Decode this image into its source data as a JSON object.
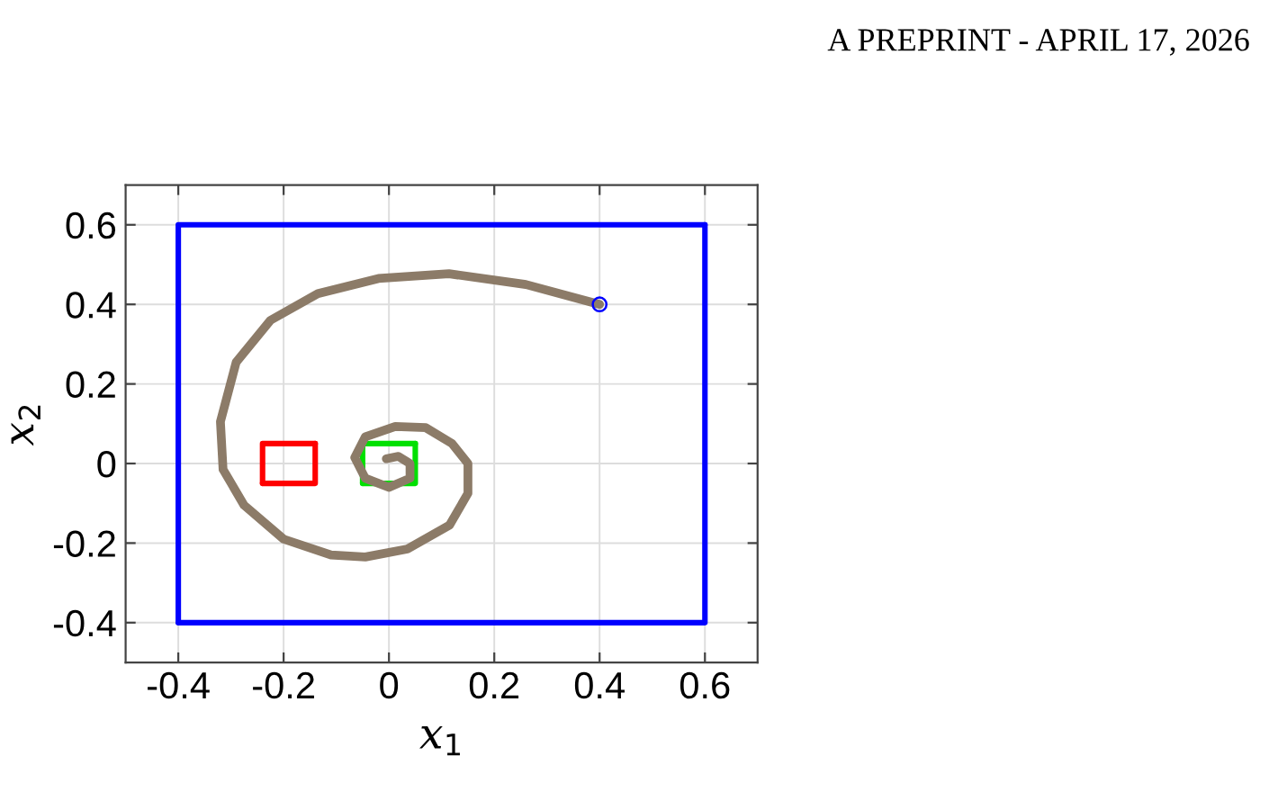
{
  "chart_data": {
    "type": "line",
    "xlabel": "x$_{1}$",
    "ylabel": "x$_{2}$",
    "annotations": [
      "A PREPRINT - APRIL 17, 2026"
    ],
    "xlim": [
      -0.5,
      0.7
    ],
    "ylim": [
      -0.5,
      0.7
    ],
    "xticks": [
      -0.4,
      -0.2,
      0,
      0.2,
      0.4,
      0.6
    ],
    "yticks": [
      -0.4,
      -0.2,
      0,
      0.2,
      0.4,
      0.6
    ],
    "grid": true,
    "line_style": "solid",
    "series": [
      {
        "type": "line",
        "color": "#0000ff",
        "marker": "none",
        "x": [
          -0.4,
          0.6,
          0.6
        ],
        "values": [
          -0.4,
          -0.4,
          0.6
        ]
      },
      {
        "type": "line",
        "color": "#0000ff",
        "marker": "none",
        "x": [
          0.6,
          -0.4,
          -0.4
        ],
        "values": [
          0.6,
          0.6,
          -0.4
        ]
      },
      {
        "type": "line",
        "color": "#ff0000",
        "marker": "none",
        "x": [
          -0.24,
          -0.14,
          -0.14
        ],
        "values": [
          -0.05,
          -0.05,
          0.05
        ]
      },
      {
        "type": "line",
        "color": "#ff0000",
        "marker": "none",
        "x": [
          -0.14,
          -0.24,
          -0.24
        ],
        "values": [
          0.05,
          0.05,
          -0.05
        ]
      },
      {
        "type": "line",
        "color": "#00e000",
        "marker": "none",
        "x": [
          -0.05,
          0.05,
          0.05
        ],
        "values": [
          -0.05,
          -0.05,
          0.05
        ]
      },
      {
        "type": "line",
        "color": "#00e000",
        "marker": "none",
        "x": [
          0.05,
          -0.05,
          -0.05
        ],
        "values": [
          0.05,
          0.05,
          -0.05
        ]
      },
      {
        "type": "line",
        "color": "#8c7b68",
        "marker": "none",
        "x": [
          0.4,
          0.26,
          0.114,
          -0.02,
          -0.135,
          -0.225,
          -0.29,
          -0.32,
          -0.315,
          -0.275,
          -0.2,
          -0.11,
          -0.045,
          0.035,
          0.115,
          0.15,
          0.15,
          0.12,
          0.07,
          0.012,
          -0.045,
          -0.065,
          -0.045,
          0.0,
          0.04,
          0.04,
          0.018,
          -0.005
        ],
        "values": [
          0.4,
          0.45,
          0.477,
          0.465,
          0.427,
          0.36,
          0.255,
          0.105,
          -0.015,
          -0.105,
          -0.19,
          -0.23,
          -0.235,
          -0.215,
          -0.155,
          -0.075,
          0.0,
          0.05,
          0.09,
          0.093,
          0.067,
          0.015,
          -0.037,
          -0.06,
          -0.037,
          0.0,
          0.018,
          0.012
        ]
      },
      {
        "type": "scatter",
        "color": "#0000ff",
        "marker": "circle",
        "x": [
          0.4
        ],
        "values": [
          0.4
        ]
      }
    ]
  }
}
